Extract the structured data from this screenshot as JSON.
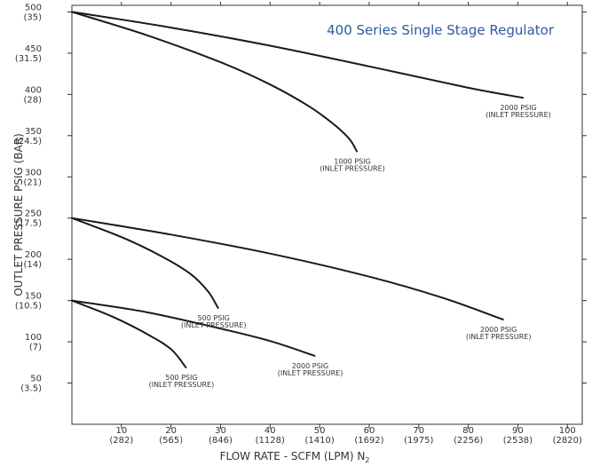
{
  "chart_data": {
    "type": "line",
    "title": "400 Series Single Stage Regulator",
    "xlabel": "FLOW RATE - SCFM (LPM) N",
    "xlabel_subscript": "2",
    "ylabel": "OUTLET PRESSURE PSIG (BAR)",
    "xlim": [
      0,
      103
    ],
    "ylim": [
      0,
      508
    ],
    "grid": false,
    "x_ticks": [
      {
        "value": 10,
        "label": "10",
        "sublabel": "(282)"
      },
      {
        "value": 20,
        "label": "20",
        "sublabel": "(565)"
      },
      {
        "value": 30,
        "label": "30",
        "sublabel": "(846)"
      },
      {
        "value": 40,
        "label": "40",
        "sublabel": "(1128)"
      },
      {
        "value": 50,
        "label": "50",
        "sublabel": "(1410)"
      },
      {
        "value": 60,
        "label": "60",
        "sublabel": "(1692)"
      },
      {
        "value": 70,
        "label": "70",
        "sublabel": "(1975)"
      },
      {
        "value": 80,
        "label": "80",
        "sublabel": "(2256)"
      },
      {
        "value": 90,
        "label": "90",
        "sublabel": "(2538)"
      },
      {
        "value": 100,
        "label": "100",
        "sublabel": "(2820)"
      }
    ],
    "y_ticks": [
      {
        "value": 50,
        "label": "50",
        "sublabel": "(3.5)"
      },
      {
        "value": 100,
        "label": "100",
        "sublabel": "(7)"
      },
      {
        "value": 150,
        "label": "150",
        "sublabel": "(10.5)"
      },
      {
        "value": 200,
        "label": "200",
        "sublabel": "(14)"
      },
      {
        "value": 250,
        "label": "250",
        "sublabel": "(17.5)"
      },
      {
        "value": 300,
        "label": "300",
        "sublabel": "(21)"
      },
      {
        "value": 350,
        "label": "350",
        "sublabel": "(24.5)"
      },
      {
        "value": 400,
        "label": "400",
        "sublabel": "(28)"
      },
      {
        "value": 450,
        "label": "450",
        "sublabel": "(31.5)"
      },
      {
        "value": 500,
        "label": "500",
        "sublabel": "(35)"
      }
    ],
    "series": [
      {
        "label_line1": "2000 PSIG",
        "label_line2": "(INLET PRESSURE)",
        "x": [
          0,
          20,
          40,
          60,
          80,
          91
        ],
        "y": [
          500,
          481,
          459,
          434,
          408,
          396
        ]
      },
      {
        "label_line1": "1000 PSIG",
        "label_line2": "(INLET PRESSURE)",
        "x": [
          0,
          15,
          30,
          40,
          48,
          53,
          56,
          57.5
        ],
        "y": [
          500,
          472,
          439,
          412,
          385,
          363,
          346,
          331
        ]
      },
      {
        "label_line1": "2000 PSIG",
        "label_line2": "(INLET PRESSURE)",
        "x": [
          0,
          20,
          40,
          60,
          75,
          87
        ],
        "y": [
          250,
          230,
          207,
          179,
          153,
          127
        ]
      },
      {
        "label_line1": "500 PSIG",
        "label_line2": "(INLET PRESSURE)",
        "x": [
          0,
          10,
          18,
          24,
          27.5,
          29.5
        ],
        "y": [
          250,
          227,
          204,
          182,
          161,
          141
        ]
      },
      {
        "label_line1": "2000 PSIG",
        "label_line2": "(INLET PRESSURE)",
        "x": [
          0,
          15,
          30,
          40,
          49
        ],
        "y": [
          150,
          136,
          116,
          101,
          83
        ]
      },
      {
        "label_line1": "500 PSIG",
        "label_line2": "(INLET PRESSURE)",
        "x": [
          0,
          8,
          15,
          20,
          23
        ],
        "y": [
          150,
          131,
          110,
          91,
          69
        ]
      }
    ],
    "colors": {
      "curve": "#1a1a1a",
      "axis": "#333333",
      "title": "#2e5a9e",
      "text": "#333333"
    }
  }
}
